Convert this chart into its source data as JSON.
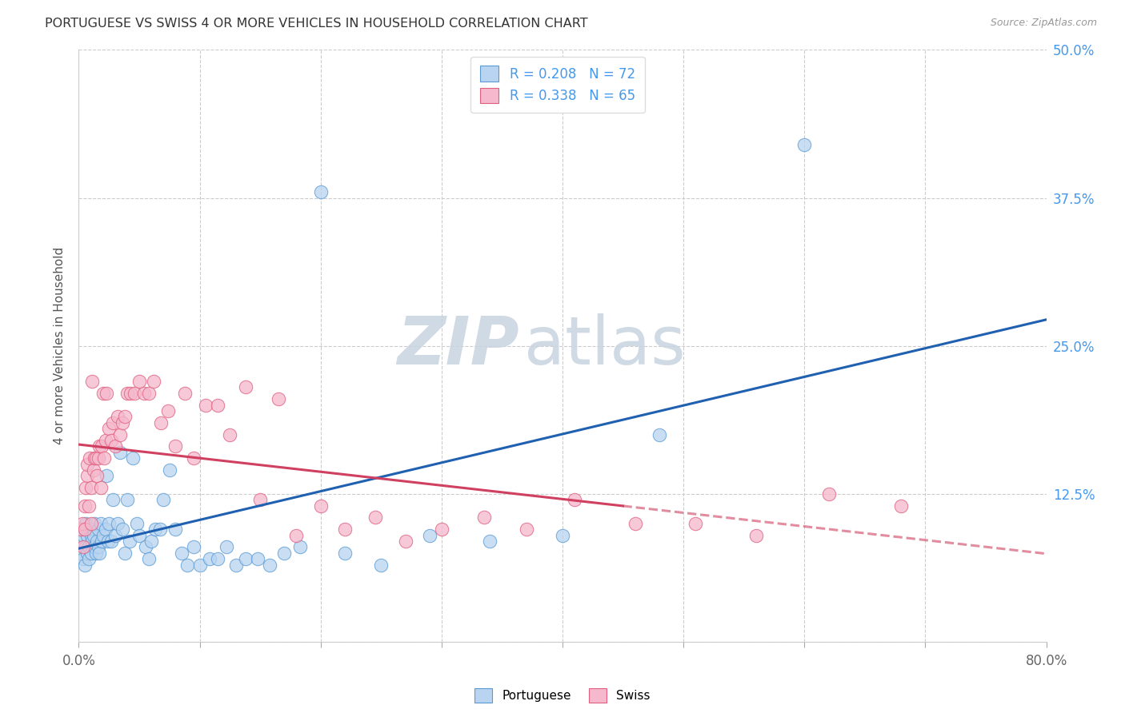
{
  "title": "PORTUGUESE VS SWISS 4 OR MORE VEHICLES IN HOUSEHOLD CORRELATION CHART",
  "source": "Source: ZipAtlas.com",
  "ylabel": "4 or more Vehicles in Household",
  "xlim": [
    0.0,
    0.8
  ],
  "ylim": [
    0.0,
    0.5
  ],
  "xticks": [
    0.0,
    0.1,
    0.2,
    0.3,
    0.4,
    0.5,
    0.6,
    0.7,
    0.8
  ],
  "xticklabels": [
    "0.0%",
    "",
    "",
    "",
    "",
    "",
    "",
    "",
    "80.0%"
  ],
  "ytick_values": [
    0.0,
    0.125,
    0.25,
    0.375,
    0.5
  ],
  "ytick_labels": [
    "",
    "12.5%",
    "25.0%",
    "37.5%",
    "50.0%"
  ],
  "R_portuguese": 0.208,
  "N_portuguese": 72,
  "R_swiss": 0.338,
  "N_swiss": 65,
  "blue_fill": "#b8d4f0",
  "pink_fill": "#f5b8cc",
  "blue_edge": "#5b9bd5",
  "pink_edge": "#e06080",
  "blue_line": "#2060b0",
  "pink_line": "#d04060",
  "right_tick_color": "#4499ee",
  "watermark_color": "#d0d8e4",
  "grid_color": "#cccccc",
  "title_color": "#333333",
  "portuguese_x": [
    0.002,
    0.003,
    0.004,
    0.004,
    0.005,
    0.005,
    0.006,
    0.006,
    0.007,
    0.007,
    0.008,
    0.008,
    0.009,
    0.01,
    0.01,
    0.011,
    0.012,
    0.013,
    0.013,
    0.014,
    0.015,
    0.016,
    0.016,
    0.017,
    0.018,
    0.019,
    0.02,
    0.022,
    0.023,
    0.024,
    0.025,
    0.027,
    0.028,
    0.03,
    0.032,
    0.034,
    0.036,
    0.038,
    0.04,
    0.042,
    0.045,
    0.048,
    0.05,
    0.055,
    0.058,
    0.06,
    0.063,
    0.067,
    0.07,
    0.075,
    0.08,
    0.085,
    0.09,
    0.095,
    0.1,
    0.108,
    0.115,
    0.122,
    0.13,
    0.138,
    0.148,
    0.158,
    0.17,
    0.183,
    0.2,
    0.22,
    0.25,
    0.29,
    0.34,
    0.4,
    0.48,
    0.6
  ],
  "portuguese_y": [
    0.075,
    0.085,
    0.07,
    0.09,
    0.065,
    0.095,
    0.08,
    0.1,
    0.075,
    0.09,
    0.08,
    0.07,
    0.095,
    0.09,
    0.075,
    0.085,
    0.09,
    0.1,
    0.08,
    0.075,
    0.085,
    0.095,
    0.08,
    0.075,
    0.1,
    0.085,
    0.09,
    0.095,
    0.14,
    0.085,
    0.1,
    0.085,
    0.12,
    0.09,
    0.1,
    0.16,
    0.095,
    0.075,
    0.12,
    0.085,
    0.155,
    0.1,
    0.09,
    0.08,
    0.07,
    0.085,
    0.095,
    0.095,
    0.12,
    0.145,
    0.095,
    0.075,
    0.065,
    0.08,
    0.065,
    0.07,
    0.07,
    0.08,
    0.065,
    0.07,
    0.07,
    0.065,
    0.075,
    0.08,
    0.38,
    0.075,
    0.065,
    0.09,
    0.085,
    0.09,
    0.175,
    0.42
  ],
  "swiss_x": [
    0.002,
    0.003,
    0.004,
    0.005,
    0.005,
    0.006,
    0.007,
    0.007,
    0.008,
    0.009,
    0.01,
    0.01,
    0.011,
    0.012,
    0.013,
    0.014,
    0.015,
    0.016,
    0.017,
    0.018,
    0.019,
    0.02,
    0.021,
    0.022,
    0.023,
    0.025,
    0.027,
    0.028,
    0.03,
    0.032,
    0.034,
    0.036,
    0.038,
    0.04,
    0.043,
    0.046,
    0.05,
    0.054,
    0.058,
    0.062,
    0.068,
    0.074,
    0.08,
    0.088,
    0.095,
    0.105,
    0.115,
    0.125,
    0.138,
    0.15,
    0.165,
    0.18,
    0.2,
    0.22,
    0.245,
    0.27,
    0.3,
    0.335,
    0.37,
    0.41,
    0.46,
    0.51,
    0.56,
    0.62,
    0.68
  ],
  "swiss_y": [
    0.095,
    0.1,
    0.08,
    0.115,
    0.095,
    0.13,
    0.14,
    0.15,
    0.115,
    0.155,
    0.13,
    0.1,
    0.22,
    0.145,
    0.155,
    0.155,
    0.14,
    0.155,
    0.165,
    0.13,
    0.165,
    0.21,
    0.155,
    0.17,
    0.21,
    0.18,
    0.17,
    0.185,
    0.165,
    0.19,
    0.175,
    0.185,
    0.19,
    0.21,
    0.21,
    0.21,
    0.22,
    0.21,
    0.21,
    0.22,
    0.185,
    0.195,
    0.165,
    0.21,
    0.155,
    0.2,
    0.2,
    0.175,
    0.215,
    0.12,
    0.205,
    0.09,
    0.115,
    0.095,
    0.105,
    0.085,
    0.095,
    0.105,
    0.095,
    0.12,
    0.1,
    0.1,
    0.09,
    0.125,
    0.115
  ]
}
